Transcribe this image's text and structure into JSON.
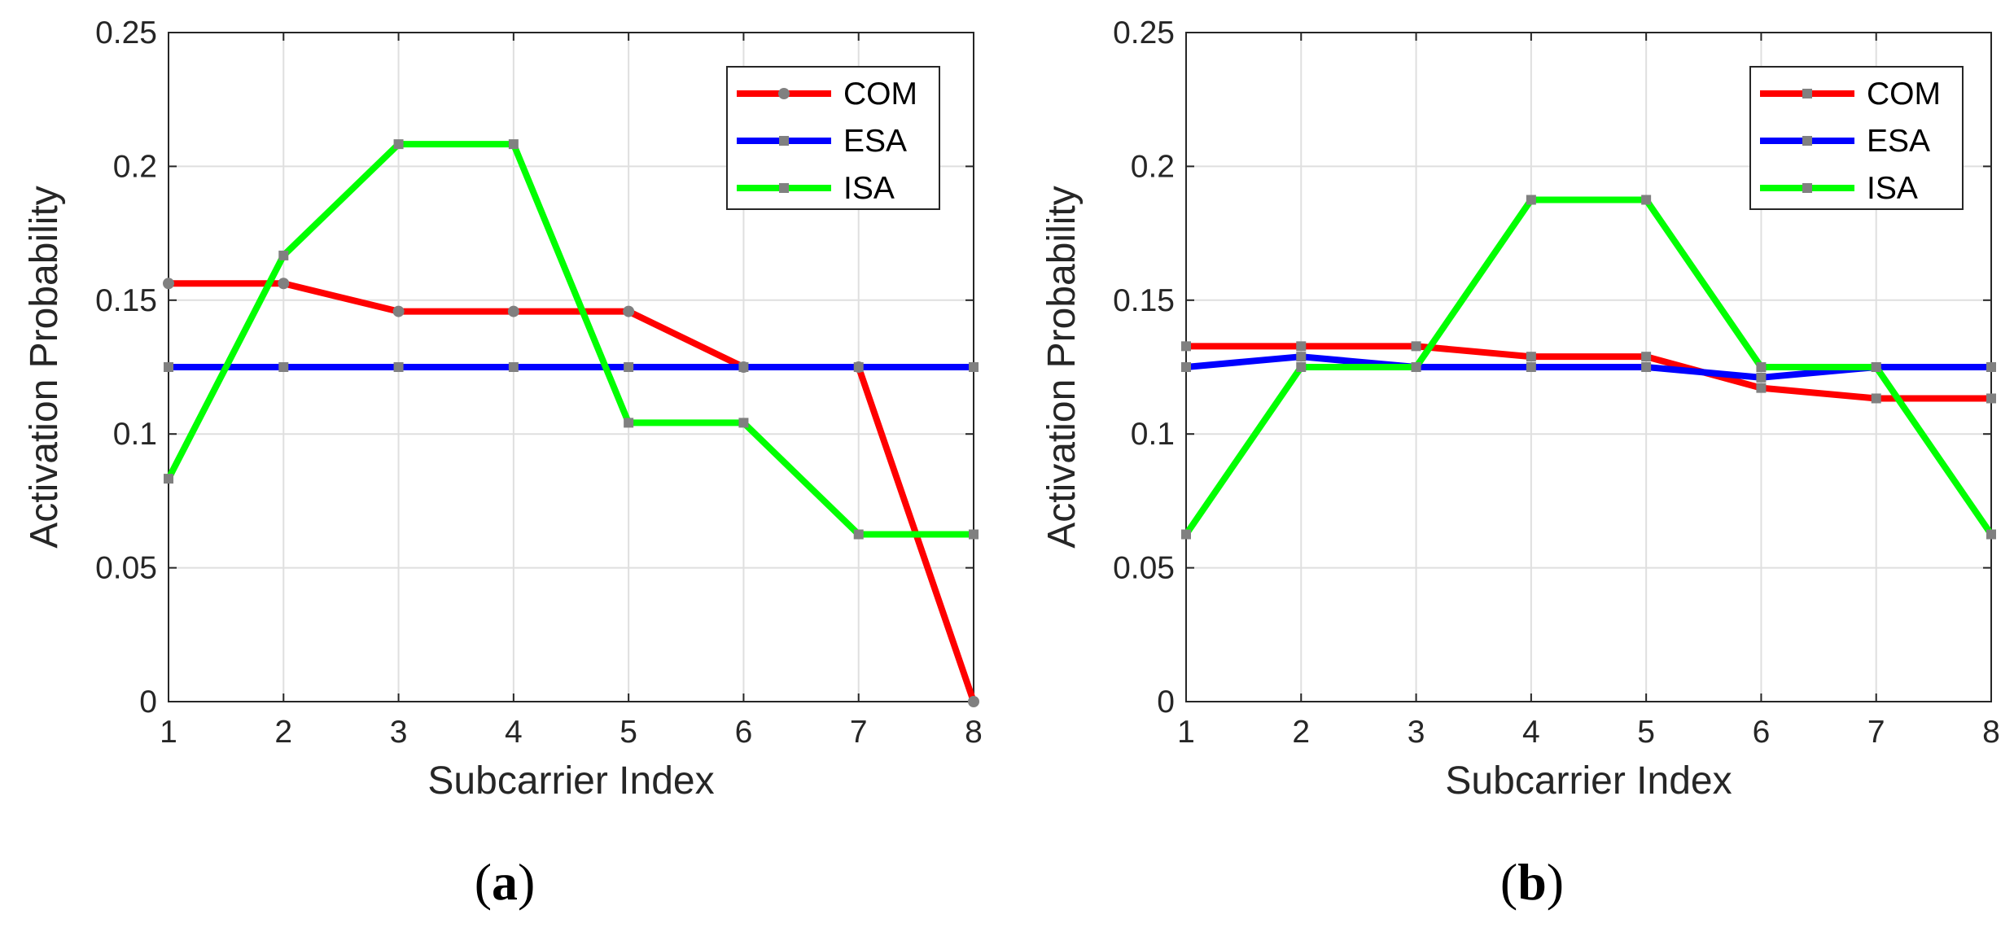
{
  "chart_data": [
    {
      "type": "line",
      "caption": "(a)",
      "caption_letter": "a",
      "xlabel": "Subcarrier Index",
      "ylabel": "Activation Probability",
      "x": [
        1,
        2,
        3,
        4,
        5,
        6,
        7,
        8
      ],
      "xlim": [
        1,
        8
      ],
      "ylim": [
        0,
        0.25
      ],
      "xticks": [
        "1",
        "2",
        "3",
        "4",
        "5",
        "6",
        "7",
        "8"
      ],
      "yticks": [
        "0",
        "0.05",
        "0.1",
        "0.15",
        "0.2",
        "0.25"
      ],
      "grid": true,
      "legend_position": "top-right",
      "series": [
        {
          "name": "COM",
          "color": "#ff0000",
          "marker": "circle",
          "values": [
            0.15625,
            0.15625,
            0.1458,
            0.1458,
            0.1458,
            0.125,
            0.125,
            0
          ]
        },
        {
          "name": "ESA",
          "color": "#0000ff",
          "marker": "square",
          "values": [
            0.125,
            0.125,
            0.125,
            0.125,
            0.125,
            0.125,
            0.125,
            0.125
          ]
        },
        {
          "name": "ISA",
          "color": "#00ff00",
          "marker": "square",
          "values": [
            0.0833,
            0.1667,
            0.2083,
            0.2083,
            0.1042,
            0.1042,
            0.0625,
            0.0625
          ]
        }
      ]
    },
    {
      "type": "line",
      "caption": "(b)",
      "caption_letter": "b",
      "xlabel": "Subcarrier Index",
      "ylabel": "Activation Probability",
      "x": [
        1,
        2,
        3,
        4,
        5,
        6,
        7,
        8
      ],
      "xlim": [
        1,
        8
      ],
      "ylim": [
        0,
        0.25
      ],
      "xticks": [
        "1",
        "2",
        "3",
        "4",
        "5",
        "6",
        "7",
        "8"
      ],
      "yticks": [
        "0",
        "0.05",
        "0.1",
        "0.15",
        "0.2",
        "0.25"
      ],
      "grid": true,
      "legend_position": "top-right",
      "series": [
        {
          "name": "COM",
          "color": "#ff0000",
          "marker": "square",
          "values": [
            0.1328,
            0.1328,
            0.1328,
            0.1289,
            0.1289,
            0.1172,
            0.1133,
            0.1133
          ]
        },
        {
          "name": "ESA",
          "color": "#0000ff",
          "marker": "square",
          "values": [
            0.125,
            0.1289,
            0.125,
            0.125,
            0.125,
            0.1211,
            0.125,
            0.125
          ]
        },
        {
          "name": "ISA",
          "color": "#00ff00",
          "marker": "square",
          "values": [
            0.0625,
            0.125,
            0.125,
            0.1875,
            0.1875,
            0.125,
            0.125,
            0.0625
          ]
        }
      ]
    }
  ]
}
